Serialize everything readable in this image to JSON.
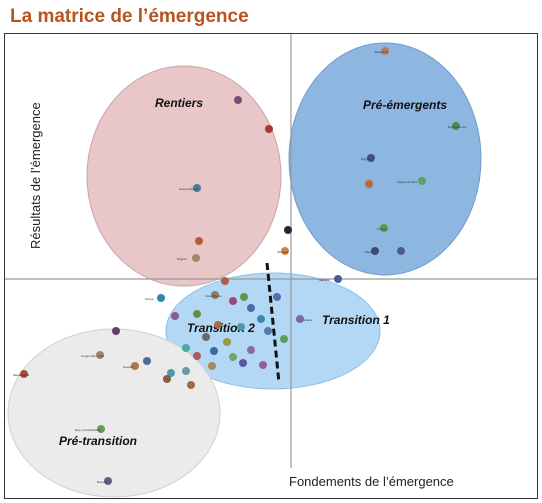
{
  "title": "La matrice de l’émergence",
  "colors": {
    "title": "#b8541f",
    "rentiers": "#e9c7c8",
    "pre_emergents": "#8db7e0",
    "transition": "#b3d8f6",
    "pre_transition": "#ebebeb"
  },
  "axes": {
    "x_label": "Fondements de l’émergence",
    "y_label": "Résultats de l’émergence"
  },
  "regions": {
    "rentiers": "Rentiers",
    "pre_emergents": "Pré-émergents",
    "transition1": "Transition 1",
    "transition2": "Transition 2",
    "pre_transition": "Pré-transition"
  },
  "point_labels": {
    "p1": "Botswana",
    "p2": "Royaume-Uni",
    "p3": "Guinée Équat.",
    "p4": "Congo Dém. Rép.",
    "p5": "Afrique du Sud",
    "p6": "Tunisie",
    "p7": "Sénégal",
    "p8": "Madagascar",
    "p9": "Kenya",
    "p10": "Rép. Centrafricaine",
    "p11": "Burundi",
    "p12": "Maurice",
    "p13": "Égypte",
    "p14": "Maroc",
    "p15": "Côte d'Ivoire",
    "p16": "Nigeria",
    "p17": "Ghana",
    "p18": "Soudan"
  }
}
